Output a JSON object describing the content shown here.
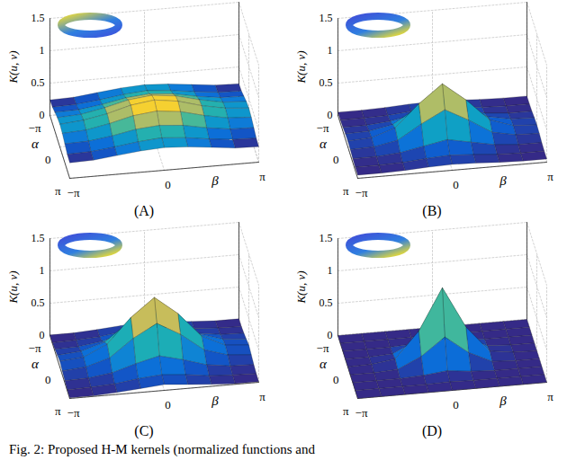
{
  "caption": "Fig. 2: Proposed H-M kernels (normalized functions and",
  "chart_data": [
    {
      "type": "surface",
      "title": "(A)",
      "xlabel": "β",
      "ylabel": "α",
      "zlabel": "K(u, v)",
      "grid": true,
      "x": [
        -3.14159,
        -2.35619,
        -1.5708,
        -0.7854,
        0,
        0.7854,
        1.5708,
        2.35619,
        3.14159
      ],
      "y": [
        -3.14159,
        -2.35619,
        -1.5708,
        -0.7854,
        0,
        0.7854,
        1.5708,
        2.35619,
        3.14159
      ],
      "xlim": [
        -3.14159,
        3.14159
      ],
      "ylim": [
        -3.14159,
        3.14159
      ],
      "zlim": [
        0,
        1.5
      ],
      "xticks": [
        {
          "value": -3.14159,
          "label": "−π"
        },
        0,
        {
          "value": 3.14159,
          "label": "π"
        }
      ],
      "yticks": [
        {
          "value": -3.14159,
          "label": "−π"
        },
        0,
        {
          "value": 3.14159,
          "label": "π"
        }
      ],
      "zticks": [
        0,
        0.5,
        1,
        1.5
      ],
      "values": [
        [
          0.24,
          0.25,
          0.29,
          0.33,
          0.35,
          0.33,
          0.29,
          0.25,
          0.24
        ],
        [
          0.25,
          0.26,
          0.3,
          0.35,
          0.38,
          0.35,
          0.3,
          0.26,
          0.25
        ],
        [
          0.29,
          0.3,
          0.35,
          0.42,
          0.45,
          0.42,
          0.35,
          0.3,
          0.29
        ],
        [
          0.33,
          0.35,
          0.42,
          0.51,
          0.55,
          0.51,
          0.42,
          0.35,
          0.33
        ],
        [
          0.35,
          0.38,
          0.45,
          0.55,
          0.6,
          0.55,
          0.45,
          0.38,
          0.35
        ],
        [
          0.33,
          0.35,
          0.42,
          0.51,
          0.55,
          0.51,
          0.42,
          0.35,
          0.33
        ],
        [
          0.29,
          0.3,
          0.35,
          0.42,
          0.45,
          0.42,
          0.35,
          0.3,
          0.29
        ],
        [
          0.25,
          0.26,
          0.3,
          0.35,
          0.38,
          0.35,
          0.3,
          0.26,
          0.25
        ],
        [
          0.24,
          0.25,
          0.29,
          0.33,
          0.35,
          0.33,
          0.29,
          0.25,
          0.24
        ]
      ]
    },
    {
      "type": "surface",
      "title": "(B)",
      "xlabel": "β",
      "ylabel": "α",
      "zlabel": "K(u, v)",
      "grid": true,
      "x": [
        -3.14159,
        -2.35619,
        -1.5708,
        -0.7854,
        0,
        0.7854,
        1.5708,
        2.35619,
        3.14159
      ],
      "y": [
        -3.14159,
        -2.35619,
        -1.5708,
        -0.7854,
        0,
        0.7854,
        1.5708,
        2.35619,
        3.14159
      ],
      "xlim": [
        -3.14159,
        3.14159
      ],
      "ylim": [
        -3.14159,
        3.14159
      ],
      "zlim": [
        0,
        1.5
      ],
      "xticks": [
        {
          "value": -3.14159,
          "label": "−π"
        },
        0,
        {
          "value": 3.14159,
          "label": "π"
        }
      ],
      "yticks": [
        {
          "value": -3.14159,
          "label": "−π"
        },
        0,
        {
          "value": 3.14159,
          "label": "π"
        }
      ],
      "zticks": [
        0,
        0.5,
        1,
        1.5
      ],
      "values": [
        [
          0.05,
          0.05,
          0.06,
          0.08,
          0.09,
          0.08,
          0.06,
          0.05,
          0.05
        ],
        [
          0.05,
          0.05,
          0.06,
          0.09,
          0.11,
          0.09,
          0.06,
          0.05,
          0.05
        ],
        [
          0.06,
          0.06,
          0.09,
          0.16,
          0.23,
          0.16,
          0.09,
          0.06,
          0.06
        ],
        [
          0.08,
          0.09,
          0.16,
          0.38,
          0.57,
          0.38,
          0.16,
          0.09,
          0.08
        ],
        [
          0.09,
          0.11,
          0.23,
          0.57,
          0.85,
          0.57,
          0.23,
          0.11,
          0.09
        ],
        [
          0.08,
          0.09,
          0.16,
          0.38,
          0.57,
          0.38,
          0.16,
          0.09,
          0.08
        ],
        [
          0.06,
          0.06,
          0.09,
          0.16,
          0.23,
          0.16,
          0.09,
          0.06,
          0.06
        ],
        [
          0.05,
          0.05,
          0.06,
          0.09,
          0.11,
          0.09,
          0.06,
          0.05,
          0.05
        ],
        [
          0.05,
          0.05,
          0.06,
          0.08,
          0.09,
          0.08,
          0.06,
          0.05,
          0.05
        ]
      ]
    },
    {
      "type": "surface",
      "title": "(C)",
      "xlabel": "β",
      "ylabel": "α",
      "zlabel": "K(u, v)",
      "grid": true,
      "x": [
        -3.14159,
        -2.35619,
        -1.5708,
        -0.7854,
        0,
        0.7854,
        1.5708,
        2.35619,
        3.14159
      ],
      "y": [
        -3.14159,
        -2.35619,
        -1.5708,
        -0.7854,
        0,
        0.7854,
        1.5708,
        2.35619,
        3.14159
      ],
      "xlim": [
        -3.14159,
        3.14159
      ],
      "ylim": [
        -3.14159,
        3.14159
      ],
      "zlim": [
        0,
        1.5
      ],
      "xticks": [
        {
          "value": -3.14159,
          "label": "−π"
        },
        0,
        {
          "value": 3.14159,
          "label": "π"
        }
      ],
      "yticks": [
        {
          "value": -3.14159,
          "label": "−π"
        },
        0,
        {
          "value": 3.14159,
          "label": "π"
        }
      ],
      "zticks": [
        0,
        0.5,
        1,
        1.5
      ],
      "values": [
        [
          0.01,
          0.01,
          0.03,
          0.06,
          0.09,
          0.06,
          0.03,
          0.01,
          0.01
        ],
        [
          0.01,
          0.02,
          0.04,
          0.09,
          0.12,
          0.09,
          0.04,
          0.02,
          0.01
        ],
        [
          0.03,
          0.04,
          0.09,
          0.2,
          0.29,
          0.2,
          0.09,
          0.04,
          0.03
        ],
        [
          0.06,
          0.09,
          0.2,
          0.47,
          0.67,
          0.47,
          0.2,
          0.09,
          0.06
        ],
        [
          0.09,
          0.12,
          0.29,
          0.67,
          0.95,
          0.67,
          0.29,
          0.12,
          0.09
        ],
        [
          0.06,
          0.09,
          0.2,
          0.47,
          0.67,
          0.47,
          0.2,
          0.09,
          0.06
        ],
        [
          0.03,
          0.04,
          0.09,
          0.2,
          0.29,
          0.2,
          0.09,
          0.04,
          0.03
        ],
        [
          0.01,
          0.02,
          0.04,
          0.09,
          0.12,
          0.09,
          0.04,
          0.02,
          0.01
        ],
        [
          0.01,
          0.01,
          0.03,
          0.06,
          0.09,
          0.06,
          0.03,
          0.01,
          0.01
        ]
      ]
    },
    {
      "type": "surface",
      "title": "(D)",
      "xlabel": "β",
      "ylabel": "α",
      "zlabel": "K(u, v)",
      "grid": true,
      "x": [
        -3.14159,
        -2.35619,
        -1.5708,
        -0.7854,
        0,
        0.7854,
        1.5708,
        2.35619,
        3.14159
      ],
      "y": [
        -3.14159,
        -2.35619,
        -1.5708,
        -0.7854,
        0,
        0.7854,
        1.5708,
        2.35619,
        3.14159
      ],
      "xlim": [
        -3.14159,
        3.14159
      ],
      "ylim": [
        -3.14159,
        3.14159
      ],
      "zlim": [
        0,
        1.5
      ],
      "xticks": [
        {
          "value": -3.14159,
          "label": "−π"
        },
        0,
        {
          "value": 3.14159,
          "label": "π"
        }
      ],
      "yticks": [
        {
          "value": -3.14159,
          "label": "−π"
        },
        0,
        {
          "value": 3.14159,
          "label": "π"
        }
      ],
      "zticks": [
        0,
        0.5,
        1,
        1.5
      ],
      "values": [
        [
          0,
          0,
          0,
          0,
          0,
          0,
          0,
          0,
          0
        ],
        [
          0,
          0,
          0,
          0,
          0.01,
          0,
          0,
          0,
          0
        ],
        [
          0,
          0,
          0,
          0.02,
          0.06,
          0.02,
          0,
          0,
          0
        ],
        [
          0,
          0,
          0.02,
          0.19,
          0.46,
          0.19,
          0.02,
          0,
          0
        ],
        [
          0,
          0.01,
          0.06,
          0.46,
          1.1,
          0.46,
          0.06,
          0.01,
          0
        ],
        [
          0,
          0,
          0.02,
          0.19,
          0.46,
          0.19,
          0.02,
          0,
          0
        ],
        [
          0,
          0,
          0,
          0.02,
          0.06,
          0.02,
          0,
          0,
          0
        ],
        [
          0,
          0,
          0,
          0,
          0.01,
          0,
          0,
          0,
          0
        ],
        [
          0,
          0,
          0,
          0,
          0,
          0,
          0,
          0,
          0
        ]
      ]
    }
  ]
}
